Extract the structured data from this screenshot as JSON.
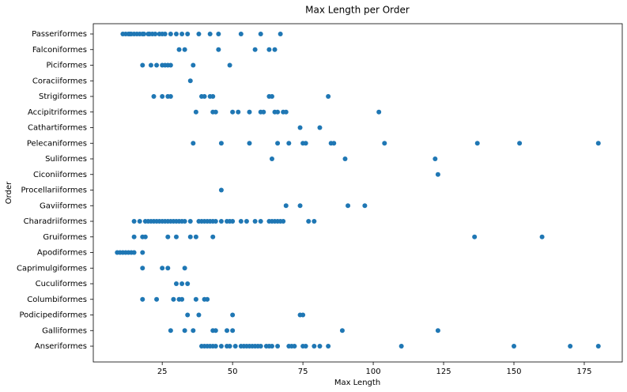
{
  "chart_data": {
    "type": "scatter",
    "title": "Max Length per Order",
    "x_label": "Max Length",
    "y_label": "Order",
    "color": "#1f77b4",
    "xlim": [
      0.5,
      188.5
    ],
    "xticks": [
      25,
      50,
      75,
      100,
      125,
      150,
      175
    ],
    "grid": false,
    "categories": [
      "Passeriformes",
      "Falconiformes",
      "Piciformes",
      "Coraciiformes",
      "Strigiformes",
      "Accipitriformes",
      "Cathartiformes",
      "Pelecaniformes",
      "Suliformes",
      "Ciconiiformes",
      "Procellariiformes",
      "Gaviiformes",
      "Charadriiformes",
      "Gruiformes",
      "Apodiformes",
      "Caprimulgiformes",
      "Cuculiformes",
      "Columbiformes",
      "Podicipediformes",
      "Galliformes",
      "Anseriformes"
    ],
    "values": [
      [
        11,
        12,
        13,
        13.5,
        14,
        15,
        16,
        17,
        18,
        18.5,
        20,
        20.5,
        21.5,
        22.5,
        24,
        25,
        26,
        28,
        30,
        32,
        34,
        38,
        42,
        45,
        53,
        60,
        67
      ],
      [
        31,
        33,
        45,
        58,
        63,
        65
      ],
      [
        18,
        21,
        23,
        25,
        26,
        27,
        28,
        36,
        49
      ],
      [
        35
      ],
      [
        22,
        25,
        27,
        28,
        39,
        40,
        42,
        43,
        63,
        64,
        84
      ],
      [
        37,
        43,
        44,
        50,
        52,
        56,
        60,
        61,
        65,
        66,
        68,
        69,
        102
      ],
      [
        74,
        81
      ],
      [
        36,
        46,
        56,
        66,
        70,
        75,
        76,
        85,
        86,
        104,
        137,
        152,
        180
      ],
      [
        64,
        90,
        122
      ],
      [
        123
      ],
      [
        46
      ],
      [
        69,
        74,
        91,
        97
      ],
      [
        15,
        17,
        19,
        20,
        21,
        22,
        23,
        24,
        25,
        26,
        27,
        28,
        29,
        30,
        31,
        32,
        33,
        35,
        38,
        39,
        40,
        41,
        42,
        43,
        44,
        46,
        48,
        49,
        50,
        53,
        55,
        58,
        60,
        63,
        64,
        65,
        66,
        67,
        68,
        77,
        79
      ],
      [
        15,
        18,
        19,
        27,
        30,
        35,
        37,
        43,
        136,
        160
      ],
      [
        9,
        10,
        11,
        12,
        13,
        14,
        15,
        18
      ],
      [
        18,
        25,
        27,
        33
      ],
      [
        30,
        32,
        34
      ],
      [
        18,
        23,
        29,
        31,
        32,
        37,
        40,
        41
      ],
      [
        34,
        38,
        50,
        74,
        75
      ],
      [
        28,
        33,
        36,
        43,
        44,
        48,
        50,
        89,
        123
      ],
      [
        39,
        40,
        41,
        42,
        43,
        44,
        46,
        48,
        49,
        51,
        53,
        54,
        55,
        56,
        57,
        58,
        59,
        60,
        62,
        63,
        64,
        66,
        70,
        71,
        72,
        75,
        76,
        79,
        81,
        84,
        110,
        150,
        170,
        180
      ]
    ]
  }
}
